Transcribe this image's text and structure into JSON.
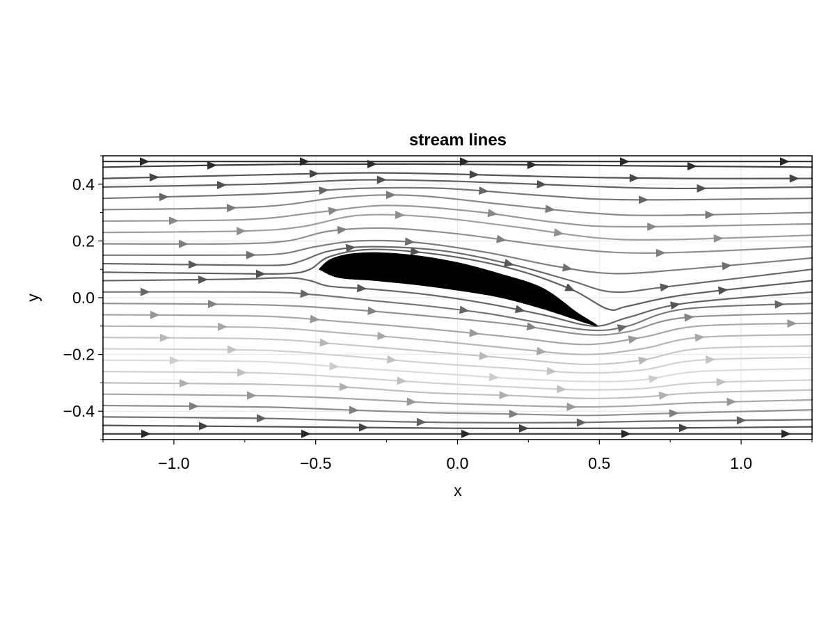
{
  "chart_data": {
    "type": "streamplot",
    "title": "stream lines",
    "xlabel": "x",
    "ylabel": "y",
    "xlim": [
      -1.25,
      1.25
    ],
    "ylim": [
      -0.5,
      0.5
    ],
    "xticks": [
      -1.0,
      -0.5,
      0.0,
      0.5,
      1.0
    ],
    "xtick_labels": [
      "−1.0",
      "−0.5",
      "0.0",
      "0.5",
      "1.0"
    ],
    "yticks": [
      -0.4,
      -0.2,
      0.0,
      0.2,
      0.4
    ],
    "ytick_labels": [
      "−0.4",
      "−0.2",
      "0.0",
      "0.2",
      "0.4"
    ],
    "grid": true,
    "colormap": "grays (dark = fast flow, light = slow flow)",
    "obstacle": {
      "name": "airfoil",
      "color": "#000000",
      "leading_edge": [
        -0.49,
        0.1
      ],
      "trailing_edge": [
        0.49,
        -0.1
      ],
      "max_thickness_y_range": [
        0.05,
        0.16
      ],
      "upper_surface": [
        [
          -0.49,
          0.1
        ],
        [
          -0.45,
          0.135
        ],
        [
          -0.38,
          0.155
        ],
        [
          -0.28,
          0.16
        ],
        [
          -0.15,
          0.15
        ],
        [
          0.0,
          0.125
        ],
        [
          0.15,
          0.085
        ],
        [
          0.3,
          0.035
        ],
        [
          0.42,
          -0.05
        ],
        [
          0.49,
          -0.1
        ]
      ],
      "lower_surface": [
        [
          0.49,
          -0.1
        ],
        [
          0.3,
          -0.04
        ],
        [
          0.15,
          0.0
        ],
        [
          0.0,
          0.025
        ],
        [
          -0.15,
          0.045
        ],
        [
          -0.3,
          0.06
        ],
        [
          -0.42,
          0.07
        ],
        [
          -0.49,
          0.1
        ]
      ]
    },
    "streamlines": [
      {
        "y0": 0.48,
        "points": [
          [
            -1.25,
            0.48
          ],
          [
            1.25,
            0.48
          ]
        ],
        "speed": 0.95
      },
      {
        "y0": 0.46,
        "points": [
          [
            -1.25,
            0.46
          ],
          [
            -0.6,
            0.47
          ],
          [
            0.0,
            0.47
          ],
          [
            0.6,
            0.465
          ],
          [
            1.25,
            0.46
          ]
        ],
        "speed": 0.9
      },
      {
        "y0": 0.42,
        "points": [
          [
            -1.25,
            0.42
          ],
          [
            -0.6,
            0.435
          ],
          [
            -0.3,
            0.44
          ],
          [
            0.0,
            0.435
          ],
          [
            0.4,
            0.425
          ],
          [
            0.8,
            0.42
          ],
          [
            1.25,
            0.42
          ]
        ],
        "speed": 0.78
      },
      {
        "y0": 0.39,
        "points": [
          [
            -1.25,
            0.39
          ],
          [
            -0.7,
            0.4
          ],
          [
            -0.35,
            0.415
          ],
          [
            0.0,
            0.41
          ],
          [
            0.4,
            0.395
          ],
          [
            0.75,
            0.385
          ],
          [
            1.25,
            0.39
          ]
        ],
        "speed": 0.72
      },
      {
        "y0": 0.35,
        "points": [
          [
            -1.25,
            0.35
          ],
          [
            -0.7,
            0.365
          ],
          [
            -0.35,
            0.385
          ],
          [
            -0.05,
            0.385
          ],
          [
            0.3,
            0.36
          ],
          [
            0.6,
            0.345
          ],
          [
            1.25,
            0.35
          ]
        ],
        "speed": 0.62
      },
      {
        "y0": 0.31,
        "points": [
          [
            -1.25,
            0.31
          ],
          [
            -0.7,
            0.32
          ],
          [
            -0.4,
            0.355
          ],
          [
            -0.15,
            0.36
          ],
          [
            0.15,
            0.33
          ],
          [
            0.45,
            0.3
          ],
          [
            0.7,
            0.29
          ],
          [
            1.25,
            0.3
          ]
        ],
        "speed": 0.52
      },
      {
        "y0": 0.27,
        "points": [
          [
            -1.25,
            0.27
          ],
          [
            -0.75,
            0.275
          ],
          [
            -0.5,
            0.3
          ],
          [
            -0.25,
            0.325
          ],
          [
            0.05,
            0.305
          ],
          [
            0.35,
            0.265
          ],
          [
            0.6,
            0.25
          ],
          [
            1.25,
            0.26
          ]
        ],
        "speed": 0.45
      },
      {
        "y0": 0.23,
        "points": [
          [
            -1.25,
            0.23
          ],
          [
            -0.75,
            0.235
          ],
          [
            -0.55,
            0.25
          ],
          [
            -0.35,
            0.29
          ],
          [
            -0.1,
            0.285
          ],
          [
            0.2,
            0.25
          ],
          [
            0.5,
            0.21
          ],
          [
            0.75,
            0.205
          ],
          [
            1.25,
            0.22
          ]
        ],
        "speed": 0.42
      },
      {
        "y0": 0.19,
        "points": [
          [
            -1.25,
            0.19
          ],
          [
            -0.8,
            0.19
          ],
          [
            -0.6,
            0.2
          ],
          [
            -0.45,
            0.235
          ],
          [
            -0.25,
            0.245
          ],
          [
            0.0,
            0.225
          ],
          [
            0.3,
            0.185
          ],
          [
            0.55,
            0.16
          ],
          [
            0.8,
            0.16
          ],
          [
            1.25,
            0.18
          ]
        ],
        "speed": 0.5
      },
      {
        "y0": 0.15,
        "points": [
          [
            -1.25,
            0.15
          ],
          [
            -0.8,
            0.15
          ],
          [
            -0.62,
            0.155
          ],
          [
            -0.5,
            0.18
          ],
          [
            -0.35,
            0.2
          ],
          [
            -0.15,
            0.195
          ],
          [
            0.1,
            0.16
          ],
          [
            0.35,
            0.11
          ],
          [
            0.55,
            0.085
          ],
          [
            0.8,
            0.1
          ],
          [
            1.25,
            0.14
          ]
        ],
        "speed": 0.58
      },
      {
        "y0": 0.12,
        "points": [
          [
            -1.25,
            0.12
          ],
          [
            -0.8,
            0.115
          ],
          [
            -0.62,
            0.115
          ],
          [
            -0.55,
            0.13
          ],
          [
            -0.45,
            0.165
          ],
          [
            -0.3,
            0.18
          ],
          [
            -0.05,
            0.165
          ],
          [
            0.2,
            0.115
          ],
          [
            0.4,
            0.06
          ],
          [
            0.55,
            0.02
          ],
          [
            0.75,
            0.04
          ],
          [
            1.25,
            0.1
          ]
        ],
        "speed": 0.68
      },
      {
        "y0": 0.09,
        "points": [
          [
            -1.25,
            0.09
          ],
          [
            -0.8,
            0.085
          ],
          [
            -0.6,
            0.085
          ],
          [
            -0.52,
            0.1
          ],
          [
            -0.45,
            0.145
          ],
          [
            -0.3,
            0.17
          ],
          [
            -0.05,
            0.15
          ],
          [
            0.2,
            0.1
          ],
          [
            0.4,
            0.03
          ],
          [
            0.53,
            -0.04
          ],
          [
            0.6,
            -0.03
          ],
          [
            0.8,
            0.01
          ],
          [
            1.25,
            0.06
          ]
        ],
        "speed": 0.72
      },
      {
        "y0": 0.06,
        "points": [
          [
            -1.25,
            0.06
          ],
          [
            -0.8,
            0.065
          ],
          [
            -0.6,
            0.07
          ],
          [
            -0.52,
            0.06
          ],
          [
            -0.45,
            0.04
          ],
          [
            -0.3,
            0.03
          ],
          [
            -0.1,
            0.01
          ],
          [
            0.1,
            -0.02
          ],
          [
            0.3,
            -0.06
          ],
          [
            0.48,
            -0.1
          ],
          [
            0.6,
            -0.07
          ],
          [
            0.8,
            -0.02
          ],
          [
            1.25,
            0.02
          ]
        ],
        "speed": 0.7
      },
      {
        "y0": 0.02,
        "points": [
          [
            -1.25,
            0.02
          ],
          [
            -0.7,
            0.02
          ],
          [
            -0.5,
            0.01
          ],
          [
            -0.3,
            -0.01
          ],
          [
            -0.1,
            -0.03
          ],
          [
            0.1,
            -0.055
          ],
          [
            0.3,
            -0.09
          ],
          [
            0.48,
            -0.115
          ],
          [
            0.6,
            -0.1
          ],
          [
            0.8,
            -0.04
          ],
          [
            1.25,
            -0.02
          ]
        ],
        "speed": 0.62
      },
      {
        "y0": -0.02,
        "points": [
          [
            -1.25,
            -0.02
          ],
          [
            -0.7,
            -0.025
          ],
          [
            -0.4,
            -0.04
          ],
          [
            -0.1,
            -0.065
          ],
          [
            0.2,
            -0.095
          ],
          [
            0.45,
            -0.13
          ],
          [
            0.6,
            -0.12
          ],
          [
            0.8,
            -0.07
          ],
          [
            1.25,
            -0.055
          ]
        ],
        "speed": 0.48
      },
      {
        "y0": -0.06,
        "points": [
          [
            -1.25,
            -0.06
          ],
          [
            -0.7,
            -0.065
          ],
          [
            -0.4,
            -0.085
          ],
          [
            -0.1,
            -0.11
          ],
          [
            0.2,
            -0.14
          ],
          [
            0.45,
            -0.165
          ],
          [
            0.65,
            -0.14
          ],
          [
            0.85,
            -0.1
          ],
          [
            1.25,
            -0.09
          ]
        ],
        "speed": 0.38
      },
      {
        "y0": -0.1,
        "points": [
          [
            -1.25,
            -0.1
          ],
          [
            -0.7,
            -0.105
          ],
          [
            -0.4,
            -0.125
          ],
          [
            -0.1,
            -0.15
          ],
          [
            0.2,
            -0.18
          ],
          [
            0.45,
            -0.2
          ],
          [
            0.65,
            -0.18
          ],
          [
            0.85,
            -0.14
          ],
          [
            1.25,
            -0.13
          ]
        ],
        "speed": 0.3
      },
      {
        "y0": -0.14,
        "points": [
          [
            -1.25,
            -0.14
          ],
          [
            -0.7,
            -0.145
          ],
          [
            -0.4,
            -0.165
          ],
          [
            -0.1,
            -0.19
          ],
          [
            0.2,
            -0.215
          ],
          [
            0.45,
            -0.235
          ],
          [
            0.65,
            -0.22
          ],
          [
            0.85,
            -0.18
          ],
          [
            1.25,
            -0.17
          ]
        ],
        "speed": 0.22
      },
      {
        "y0": -0.18,
        "points": [
          [
            -1.25,
            -0.18
          ],
          [
            -0.7,
            -0.185
          ],
          [
            -0.4,
            -0.205
          ],
          [
            -0.1,
            -0.23
          ],
          [
            0.2,
            -0.25
          ],
          [
            0.45,
            -0.265
          ],
          [
            0.65,
            -0.255
          ],
          [
            0.85,
            -0.22
          ],
          [
            1.25,
            -0.21
          ]
        ],
        "speed": 0.17
      },
      {
        "y0": -0.22,
        "points": [
          [
            -1.25,
            -0.22
          ],
          [
            -0.7,
            -0.225
          ],
          [
            -0.4,
            -0.245
          ],
          [
            -0.1,
            -0.265
          ],
          [
            0.2,
            -0.285
          ],
          [
            0.45,
            -0.295
          ],
          [
            0.65,
            -0.29
          ],
          [
            0.85,
            -0.26
          ],
          [
            1.25,
            -0.25
          ]
        ],
        "speed": 0.12
      },
      {
        "y0": -0.26,
        "points": [
          [
            -1.25,
            -0.26
          ],
          [
            -0.7,
            -0.265
          ],
          [
            -0.4,
            -0.28
          ],
          [
            -0.1,
            -0.3
          ],
          [
            0.2,
            -0.315
          ],
          [
            0.45,
            -0.325
          ],
          [
            0.65,
            -0.32
          ],
          [
            0.85,
            -0.3
          ],
          [
            1.25,
            -0.29
          ]
        ],
        "speed": 0.18
      },
      {
        "y0": -0.3,
        "points": [
          [
            -1.25,
            -0.3
          ],
          [
            -0.7,
            -0.305
          ],
          [
            -0.4,
            -0.315
          ],
          [
            -0.1,
            -0.335
          ],
          [
            0.2,
            -0.345
          ],
          [
            0.45,
            -0.355
          ],
          [
            0.65,
            -0.35
          ],
          [
            0.85,
            -0.335
          ],
          [
            1.25,
            -0.325
          ]
        ],
        "speed": 0.26
      },
      {
        "y0": -0.34,
        "points": [
          [
            -1.25,
            -0.34
          ],
          [
            -0.7,
            -0.345
          ],
          [
            -0.4,
            -0.355
          ],
          [
            -0.1,
            -0.37
          ],
          [
            0.2,
            -0.38
          ],
          [
            0.45,
            -0.385
          ],
          [
            0.65,
            -0.38
          ],
          [
            0.85,
            -0.37
          ],
          [
            1.25,
            -0.36
          ]
        ],
        "speed": 0.38
      },
      {
        "y0": -0.38,
        "points": [
          [
            -1.25,
            -0.38
          ],
          [
            -0.7,
            -0.385
          ],
          [
            -0.4,
            -0.395
          ],
          [
            -0.1,
            -0.405
          ],
          [
            0.2,
            -0.41
          ],
          [
            0.45,
            -0.415
          ],
          [
            0.65,
            -0.41
          ],
          [
            0.85,
            -0.405
          ],
          [
            1.25,
            -0.395
          ]
        ],
        "speed": 0.5
      },
      {
        "y0": -0.42,
        "points": [
          [
            -1.25,
            -0.42
          ],
          [
            -0.7,
            -0.425
          ],
          [
            -0.3,
            -0.435
          ],
          [
            0.0,
            -0.44
          ],
          [
            0.4,
            -0.44
          ],
          [
            0.7,
            -0.435
          ],
          [
            1.25,
            -0.43
          ]
        ],
        "speed": 0.65
      },
      {
        "y0": -0.45,
        "points": [
          [
            -1.25,
            -0.45
          ],
          [
            -0.6,
            -0.455
          ],
          [
            0.0,
            -0.46
          ],
          [
            0.6,
            -0.46
          ],
          [
            1.25,
            -0.455
          ]
        ],
        "speed": 0.8
      },
      {
        "y0": -0.48,
        "points": [
          [
            -1.25,
            -0.48
          ],
          [
            1.25,
            -0.48
          ]
        ],
        "speed": 0.92
      }
    ]
  }
}
